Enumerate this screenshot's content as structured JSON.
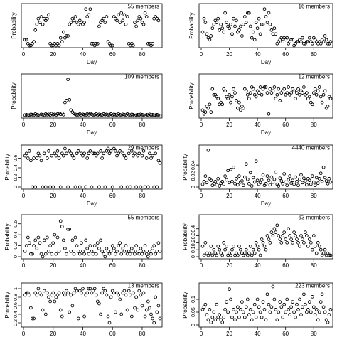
{
  "chart_data": [
    {
      "type": "scatter",
      "title": "55 members",
      "xlabel": "Day",
      "ylabel": "Probability",
      "xlim": [
        0,
        92
      ],
      "ylim": [
        0,
        1
      ],
      "xticks": [
        0,
        20,
        40,
        60,
        80
      ],
      "yticks": [],
      "y": [
        0.15,
        0.15,
        0.05,
        0,
        0,
        0.05,
        0.1,
        0.4,
        0.55,
        0.7,
        0.6,
        0.75,
        0.55,
        0.7,
        0.65,
        0.7,
        0.8,
        0.05,
        0,
        0,
        0.05,
        0,
        0.05,
        0,
        0.2,
        0.1,
        0.35,
        0.2,
        0.25,
        0.25,
        0.55,
        0.6,
        0.7,
        0.65,
        0.75,
        0.6,
        0.55,
        0.65,
        0.6,
        0.55,
        0.6,
        0.95,
        0.75,
        0.8,
        0.95,
        0.05,
        0.05,
        0,
        0.05,
        0.05,
        0.5,
        0.6,
        0.65,
        0.7,
        0.6,
        0.75,
        0.1,
        0.05,
        0,
        0,
        0.75,
        0.7,
        0.65,
        0.8,
        0.6,
        0.85,
        0.65,
        0.8,
        0.55,
        0.75,
        0.05,
        0,
        0.05,
        0,
        0.6,
        0.5,
        0.65,
        0.75,
        0.7,
        0.6,
        0.55,
        0.85,
        0.75,
        0.05,
        0.05,
        0,
        0.05,
        0.7,
        0.75,
        0.7,
        0.65
      ]
    },
    {
      "type": "scatter",
      "title": "16 members",
      "xlabel": "Day",
      "ylabel": "Probability",
      "xlim": [
        0,
        92
      ],
      "ylim": [
        0,
        1
      ],
      "xticks": [
        0,
        20,
        40,
        60,
        80
      ],
      "yticks": [],
      "y": [
        0.35,
        0.7,
        0.6,
        0.3,
        0.2,
        0.15,
        0.25,
        0.45,
        0.55,
        0.65,
        0.6,
        0.7,
        0.4,
        0.55,
        0.45,
        0.35,
        0.85,
        0.6,
        0.5,
        0.45,
        0.55,
        0.3,
        0.7,
        0.5,
        0.65,
        0.35,
        0.4,
        0.5,
        0.25,
        0.55,
        0.75,
        0.6,
        0.85,
        0.85,
        0.5,
        0.2,
        0.35,
        0.15,
        0.6,
        0.45,
        0.7,
        0.3,
        0.55,
        0.55,
        0.95,
        0.75,
        0.6,
        0.85,
        0.55,
        0.4,
        0.3,
        0.45,
        0.3,
        0.05,
        0.1,
        0.15,
        0.2,
        0.1,
        0.2,
        0.15,
        0.2,
        0.05,
        0.1,
        0.15,
        0.15,
        0,
        0.05,
        0.1,
        0.1,
        0.15,
        0.1,
        0.2,
        0.05,
        0.05,
        0.1,
        0.1,
        0.2,
        0.1,
        0.05,
        0.2,
        0.15,
        0.1,
        0.05,
        0.1,
        0.05,
        0.15,
        0.1,
        0.25,
        0.15,
        0.05,
        0.05,
        0.1
      ]
    },
    {
      "type": "scatter",
      "title": "109 members",
      "xlabel": "Day",
      "ylabel": "Probability",
      "xlim": [
        0,
        92
      ],
      "ylim": [
        0,
        1
      ],
      "xticks": [
        0,
        20,
        40,
        60,
        80
      ],
      "yticks": [],
      "y": [
        0.02,
        0.03,
        0.01,
        0.02,
        0.04,
        0.03,
        0.02,
        0.05,
        0.03,
        0.02,
        0.01,
        0.04,
        0.03,
        0.02,
        0.05,
        0.03,
        0.04,
        0.02,
        0.06,
        0.03,
        0.04,
        0.02,
        0.05,
        0.06,
        0.04,
        0.07,
        0.03,
        0.35,
        0.4,
        0.95,
        0.42,
        0.15,
        0.1,
        0.06,
        0.04,
        0.02,
        0.03,
        0.05,
        0.02,
        0.04,
        0.03,
        0.02,
        0.05,
        0.03,
        0.06,
        0.04,
        0.02,
        0.03,
        0.05,
        0.02,
        0.04,
        0.03,
        0.02,
        0.05,
        0.03,
        0.04,
        0.02,
        0.03,
        0.05,
        0.02,
        0.04,
        0.03,
        0.02,
        0.05,
        0.03,
        0.02,
        0.04,
        0.03,
        0.02,
        0.05,
        0.03,
        0.02,
        0.04,
        0.03,
        0.01,
        0.02,
        0.03,
        0.02,
        0.04,
        0.03,
        0.02,
        0.01,
        0.03,
        0.02,
        0.04,
        0.02,
        0.03,
        0.01,
        0.02,
        0.03,
        0.02,
        0.01
      ]
    },
    {
      "type": "scatter",
      "title": "12 members",
      "xlabel": "Day",
      "ylabel": "Probability",
      "xlim": [
        0,
        92
      ],
      "ylim": [
        0,
        1
      ],
      "xticks": [
        0,
        20,
        40,
        60,
        80
      ],
      "yticks": [],
      "y": [
        0.15,
        0.05,
        0.1,
        0.25,
        0.2,
        0.3,
        0.1,
        0.7,
        0.55,
        0.55,
        0.5,
        0.45,
        0.3,
        0.35,
        0.3,
        0.7,
        0.65,
        0.5,
        0.45,
        0.55,
        0.35,
        0.5,
        0.7,
        0.6,
        0.4,
        0.2,
        0.35,
        0.15,
        0.25,
        0.2,
        0.7,
        0.65,
        0.55,
        0.45,
        0.6,
        0.75,
        0.7,
        0.55,
        0.5,
        0.65,
        0.6,
        0.75,
        0.55,
        0.7,
        0.75,
        0.75,
        0.6,
        0.05,
        0.7,
        0.6,
        0.65,
        0.75,
        0.45,
        0.55,
        0.7,
        0.4,
        0.6,
        0.65,
        0.7,
        0.55,
        0.6,
        0.75,
        0.55,
        0.6,
        0.7,
        0.65,
        0.45,
        0.6,
        0.7,
        0.55,
        0.65,
        0.6,
        0.75,
        0.55,
        0.6,
        0.45,
        0.5,
        0.35,
        0.3,
        0.6,
        0.7,
        0.55,
        0.65,
        0.75,
        0.5,
        0.35,
        0.55,
        0.65,
        0.2,
        0.25,
        0.5,
        0.45
      ]
    },
    {
      "type": "scatter",
      "title": "29 members",
      "xlabel": "Day",
      "ylabel": "Probability",
      "xlim": [
        0,
        92
      ],
      "ylim": [
        0,
        0.8
      ],
      "xticks": [
        0,
        20,
        40,
        60,
        80
      ],
      "yticks": [
        0,
        0.2,
        0.4,
        0.6
      ],
      "y": [
        0.65,
        0.7,
        0.6,
        0.75,
        0.55,
        0,
        0.6,
        0,
        0.6,
        0.7,
        0.65,
        0.55,
        0,
        0.7,
        0,
        0.6,
        0.75,
        0,
        0.65,
        0,
        0.7,
        0.65,
        0.75,
        0.6,
        0,
        0.7,
        0.65,
        0.8,
        0.7,
        0,
        0.75,
        0.7,
        0.65,
        0.6,
        0,
        0.7,
        0.75,
        0,
        0.7,
        0.65,
        0.7,
        0,
        0.6,
        0.7,
        0.75,
        0,
        0.7,
        0.7,
        0.65,
        0.7,
        0,
        0.75,
        0.6,
        0.7,
        0,
        0.75,
        0.8,
        0.7,
        0.75,
        0,
        0.8,
        0.75,
        0.65,
        0.7,
        0.75,
        0,
        0.7,
        0.65,
        0.6,
        0,
        0.7,
        0,
        0.75,
        0.65,
        0.7,
        0,
        0.65,
        0.7,
        0,
        0.65,
        0.75,
        0,
        0.6,
        0,
        0.7,
        0.6,
        0.65,
        0,
        0.7,
        0,
        0.55,
        0.5
      ]
    },
    {
      "type": "scatter",
      "title": "4440 members",
      "xlabel": "Day",
      "ylabel": "Probability",
      "xlim": [
        0,
        92
      ],
      "ylim": [
        0,
        0.07
      ],
      "xticks": [
        0,
        20,
        40,
        60,
        80
      ],
      "yticks": [
        0,
        0.02,
        0.04
      ],
      "y": [
        0.005,
        0.01,
        0.02,
        0.008,
        0.067,
        0.015,
        0.012,
        0.003,
        0.006,
        0.01,
        0.004,
        0.015,
        0.002,
        0.007,
        0.01,
        0.005,
        0.02,
        0.013,
        0.03,
        0.008,
        0.032,
        0.01,
        0.036,
        0.006,
        0.015,
        0.004,
        0.02,
        0.009,
        0.011,
        0.003,
        0.018,
        0.042,
        0.014,
        0.006,
        0.026,
        0.002,
        0.017,
        0.009,
        0.047,
        0.012,
        0.005,
        0.008,
        0.013,
        0.022,
        0.003,
        0.006,
        0.02,
        0.012,
        0.004,
        0.018,
        0.009,
        0.014,
        0.027,
        0.005,
        0.002,
        0.016,
        0.011,
        0.006,
        0.024,
        0.009,
        0.003,
        0.013,
        0.02,
        0.007,
        0.012,
        0.005,
        0.018,
        0.01,
        0.003,
        0.014,
        0.022,
        0.008,
        0.016,
        0.011,
        0.004,
        0.015,
        0.012,
        0.005,
        0.02,
        0.009,
        0.003,
        0.017,
        0.007,
        0.015,
        0.025,
        0.01,
        0.036,
        0.017,
        0.011,
        0.006,
        0.015,
        0.009
      ]
    },
    {
      "type": "scatter",
      "title": "55 members",
      "xlabel": "",
      "ylabel": "Probability",
      "xlim": [
        0,
        92
      ],
      "ylim": [
        0,
        0.7
      ],
      "xticks": [
        0,
        20,
        40,
        60,
        80
      ],
      "yticks": [
        0,
        0.2,
        0.4,
        0.6
      ],
      "y": [
        0.1,
        0.2,
        0.35,
        0.25,
        0.05,
        0.05,
        0.2,
        0.3,
        0.15,
        0.35,
        0.25,
        0.05,
        0,
        0.3,
        0.05,
        0.35,
        0.1,
        0.2,
        0.05,
        0.25,
        0.4,
        0.05,
        0.35,
        0.1,
        0.65,
        0.55,
        0.3,
        0.15,
        0.05,
        0.5,
        0.5,
        0.1,
        0.3,
        0.05,
        0.35,
        0.2,
        0.1,
        0.05,
        0.25,
        0.1,
        0.05,
        0.3,
        0.15,
        0.05,
        0.2,
        0.1,
        0.05,
        0.2,
        0.05,
        0.25,
        0.15,
        0.3,
        0.1,
        0.05,
        0,
        0.15,
        0.1,
        0.05,
        0.1,
        0.2,
        0.15,
        0.05,
        0.1,
        0.2,
        0.25,
        0.05,
        0.15,
        0.1,
        0.2,
        0.05,
        0.1,
        0.05,
        0.15,
        0.1,
        0.05,
        0.2,
        0.1,
        0.05,
        0.15,
        0.05,
        0.1,
        0.2,
        0.05,
        0,
        0.1,
        0.05,
        0.15,
        0.2,
        0.05,
        0.1,
        0.25,
        0.1
      ]
    },
    {
      "type": "scatter",
      "title": "63 members",
      "xlabel": "",
      "ylabel": "Probability",
      "xlim": [
        0,
        92
      ],
      "ylim": [
        0,
        0.55
      ],
      "xticks": [
        0,
        20,
        40,
        60,
        80
      ],
      "yticks": [
        0,
        0.1,
        0.2,
        0.3,
        0.4
      ],
      "y": [
        0.15,
        0.02,
        0.2,
        0.05,
        0.02,
        0.05,
        0.15,
        0.02,
        0.1,
        0.05,
        0.02,
        0.15,
        0.1,
        0.05,
        0.02,
        0.2,
        0.1,
        0.15,
        0.02,
        0.05,
        0.02,
        0.1,
        0.15,
        0.02,
        0.05,
        0.02,
        0.15,
        0.1,
        0.05,
        0.02,
        0.05,
        0.1,
        0.02,
        0.05,
        0.15,
        0.02,
        0.1,
        0.05,
        0.2,
        0.15,
        0.1,
        0.02,
        0.25,
        0.2,
        0.15,
        0.1,
        0.3,
        0.25,
        0.2,
        0.35,
        0.3,
        0.4,
        0.35,
        0.45,
        0.3,
        0.25,
        0.2,
        0.3,
        0.35,
        0.25,
        0.2,
        0.4,
        0.3,
        0.25,
        0.2,
        0.35,
        0.3,
        0.25,
        0.2,
        0.15,
        0.3,
        0.25,
        0.2,
        0.35,
        0.3,
        0.15,
        0.25,
        0.2,
        0.1,
        0.3,
        0.15,
        0.05,
        0.2,
        0.15,
        0.1,
        0.02,
        0.05,
        0.1,
        0.02,
        0.05,
        0.02,
        0.02
      ]
    },
    {
      "type": "scatter",
      "title": "13 members",
      "xlabel": "",
      "ylabel": "Probability",
      "xlim": [
        0,
        92
      ],
      "ylim": [
        0.15,
        1.05
      ],
      "xticks": [
        0,
        20,
        40,
        60,
        80
      ],
      "yticks": [
        0.2,
        0.4,
        0.6,
        0.8,
        1.0
      ],
      "y": [
        0.85,
        0.9,
        0.9,
        0.85,
        0.55,
        0.3,
        0.3,
        0.9,
        0.85,
        1.0,
        0.9,
        0.85,
        0.5,
        0.95,
        0.4,
        0.9,
        0.8,
        0.7,
        0.85,
        0.9,
        0.7,
        0.8,
        0.85,
        0.9,
        0.5,
        0.35,
        0.9,
        0.85,
        0.95,
        0.9,
        0.45,
        0.85,
        0.6,
        0.9,
        1.0,
        0.95,
        0.3,
        0.95,
        0.9,
        1.0,
        0.35,
        0.85,
        0.9,
        1.0,
        1.0,
        0.9,
        0.95,
        1.0,
        0.85,
        0.7,
        0.65,
        0.4,
        0.9,
        1.0,
        0.95,
        0.85,
        0.35,
        0.2,
        0.8,
        0.95,
        0.9,
        0.45,
        0.9,
        0.85,
        0.75,
        0.4,
        0.9,
        0.95,
        0.85,
        0.5,
        0.95,
        0.85,
        0.35,
        0.9,
        0.55,
        0.8,
        0.5,
        0.95,
        0.85,
        0.6,
        0.9,
        0.35,
        0.5,
        0.7,
        0.55,
        0.4,
        0.3,
        0.2,
        0.8,
        0.45,
        0.6,
        0.3
      ]
    },
    {
      "type": "scatter",
      "title": "223 members",
      "xlabel": "",
      "ylabel": "Probability",
      "xlim": [
        0,
        92
      ],
      "ylim": [
        0,
        0.15
      ],
      "xticks": [
        0,
        20,
        40,
        60,
        80
      ],
      "yticks": [
        0,
        0.05,
        0.1
      ],
      "y": [
        0.06,
        0.07,
        0.08,
        0.04,
        0.02,
        0.06,
        0.01,
        0.03,
        0.05,
        0.02,
        0.08,
        0.03,
        0.04,
        0.02,
        0.01,
        0.03,
        0.06,
        0.09,
        0.05,
        0.14,
        0.1,
        0.03,
        0.06,
        0.02,
        0.05,
        0.07,
        0.03,
        0.06,
        0.09,
        0.05,
        0.03,
        0.07,
        0.1,
        0.04,
        0.06,
        0.02,
        0.05,
        0.08,
        0.03,
        0.1,
        0.07,
        0.05,
        0.03,
        0.09,
        0.06,
        0.02,
        0.12,
        0.08,
        0.05,
        0.07,
        0.15,
        0.1,
        0.06,
        0.02,
        0.05,
        0.09,
        0.07,
        0.03,
        0.08,
        0.05,
        0.1,
        0.06,
        0.04,
        0.07,
        0.09,
        0.05,
        0.03,
        0.08,
        0.06,
        0.1,
        0.04,
        0.07,
        0.12,
        0.08,
        0.05,
        0.06,
        0.09,
        0.05,
        0.11,
        0.07,
        0.04,
        0.06,
        0.02,
        0.05,
        0.09,
        0.12,
        0.07,
        0.05,
        0.02,
        0.01,
        0.04,
        0.06
      ]
    }
  ]
}
